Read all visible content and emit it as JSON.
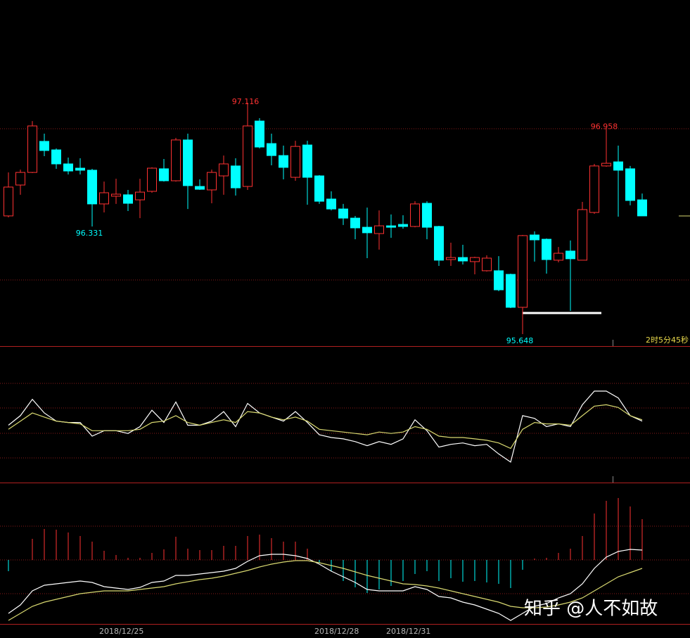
{
  "chart_data": [
    {
      "type": "candlestick",
      "categories": [
        null,
        null,
        null,
        null,
        null,
        null,
        null,
        null,
        "2018/12/25",
        null,
        null,
        null,
        null,
        null,
        null,
        null,
        null,
        null,
        null,
        null,
        null,
        null,
        null,
        null,
        null,
        null,
        "2018/12/28",
        null,
        null,
        null,
        null,
        null,
        "2018/12/31",
        null,
        null,
        null,
        null,
        null,
        null,
        null,
        null,
        null,
        null,
        null,
        null,
        null,
        null,
        null,
        null,
        null,
        null,
        null,
        null,
        null
      ],
      "open": [
        96.398,
        96.594,
        96.674,
        96.871,
        96.817,
        96.728,
        96.701,
        96.688,
        96.474,
        96.523,
        96.532,
        96.5,
        96.554,
        96.697,
        96.621,
        96.88,
        96.585,
        96.563,
        96.652,
        96.715,
        96.585,
        97.0,
        96.857,
        96.781,
        96.643,
        96.848,
        96.652,
        96.505,
        96.442,
        96.384,
        96.326,
        96.286,
        96.335,
        96.344,
        96.331,
        96.478,
        96.331,
        96.121,
        96.134,
        96.108,
        96.05,
        96.05,
        96.027,
        95.818,
        96.277,
        96.25,
        96.117,
        96.175,
        96.117,
        96.42,
        96.715,
        96.741,
        96.697,
        96.5
      ],
      "high": [
        96.674,
        96.692,
        97.0,
        96.92,
        96.826,
        96.768,
        96.764,
        96.697,
        96.616,
        96.634,
        96.563,
        96.634,
        96.706,
        96.759,
        96.893,
        96.92,
        96.63,
        96.692,
        96.781,
        96.764,
        97.116,
        97.018,
        96.92,
        96.844,
        96.875,
        96.875,
        96.657,
        96.554,
        96.474,
        96.398,
        96.451,
        96.433,
        96.407,
        96.402,
        96.491,
        96.491,
        96.335,
        96.228,
        96.215,
        96.139,
        96.148,
        96.143,
        96.032,
        96.277,
        96.3,
        96.255,
        96.201,
        96.242,
        96.487,
        96.728,
        96.958,
        96.844,
        96.715,
        96.54
      ],
      "low": [
        96.389,
        96.532,
        96.67,
        96.777,
        96.697,
        96.661,
        96.661,
        96.331,
        96.42,
        96.474,
        96.429,
        96.384,
        96.545,
        96.616,
        96.616,
        96.442,
        96.563,
        96.478,
        96.532,
        96.527,
        96.563,
        96.826,
        96.719,
        96.63,
        96.621,
        96.469,
        96.474,
        96.433,
        96.34,
        96.25,
        96.13,
        96.184,
        96.259,
        96.317,
        96.326,
        96.25,
        96.081,
        96.081,
        96.09,
        96.027,
        96.045,
        95.92,
        95.813,
        95.648,
        96.108,
        96.032,
        96.103,
        95.795,
        96.117,
        96.411,
        96.71,
        96.393,
        96.465,
        96.398
      ],
      "close": [
        96.581,
        96.674,
        96.969,
        96.813,
        96.728,
        96.683,
        96.688,
        96.474,
        96.545,
        96.536,
        96.478,
        96.549,
        96.701,
        96.621,
        96.88,
        96.59,
        96.567,
        96.674,
        96.728,
        96.576,
        96.969,
        96.835,
        96.781,
        96.706,
        96.839,
        96.643,
        96.491,
        96.442,
        96.384,
        96.322,
        96.291,
        96.335,
        96.326,
        96.331,
        96.474,
        96.326,
        96.117,
        96.134,
        96.112,
        96.134,
        96.13,
        95.929,
        95.818,
        96.273,
        96.246,
        96.121,
        96.161,
        96.126,
        96.438,
        96.715,
        96.732,
        96.688,
        96.496,
        96.398
      ],
      "up_color": "#ff3232",
      "down_color": "#00ffff",
      "ylim": [
        95.572,
        97.768
      ]
    },
    {
      "type": "line",
      "series": [
        {
          "color": "#ffffff",
          "values": [
            42,
            49,
            61,
            51,
            45,
            44,
            44,
            34,
            38,
            38,
            36,
            41,
            53,
            44,
            59,
            42,
            42,
            45,
            52,
            41,
            58,
            51,
            48,
            45,
            52,
            44,
            35,
            33,
            32,
            30,
            27,
            30,
            28,
            32,
            46,
            38,
            26,
            28,
            29,
            27,
            28,
            21,
            15,
            49,
            47,
            41,
            43,
            41,
            57,
            67,
            67,
            62,
            49,
            45
          ]
        },
        {
          "color": "#d8d870",
          "values": [
            39,
            45,
            51,
            48,
            45,
            44,
            43,
            38,
            38,
            38,
            38,
            39,
            44,
            45,
            49,
            44,
            42,
            44,
            46,
            44,
            52,
            51,
            48,
            46,
            48,
            45,
            39,
            38,
            37,
            36,
            35,
            37,
            36,
            37,
            41,
            39,
            34,
            33,
            33,
            32,
            31,
            29,
            25,
            39,
            44,
            43,
            43,
            42,
            49,
            56,
            57,
            55,
            49,
            46
          ]
        }
      ],
      "ylim": [
        0,
        100
      ]
    },
    {
      "type": "macd",
      "values": [
        -0.16,
        0,
        0.3,
        0.44,
        0.43,
        0.39,
        0.34,
        0.26,
        0.13,
        0.07,
        0.03,
        0.03,
        0.1,
        0.15,
        0.33,
        0.16,
        0.14,
        0.14,
        0.2,
        0.2,
        0.34,
        0.36,
        0.31,
        0.26,
        0.26,
        0.16,
        -0.04,
        -0.16,
        -0.3,
        -0.39,
        -0.47,
        -0.42,
        -0.37,
        -0.3,
        -0.2,
        -0.16,
        -0.3,
        -0.26,
        -0.31,
        -0.3,
        -0.32,
        -0.34,
        -0.4,
        -0.14,
        0.02,
        0.03,
        0.1,
        0.16,
        0.34,
        0.66,
        0.84,
        0.88,
        0.76,
        0.58
      ],
      "up_color": "#ff3232",
      "down_color": "#00ffff",
      "series": [
        {
          "color": "#ffffff",
          "values": [
            -0.76,
            -0.64,
            -0.44,
            -0.36,
            -0.34,
            -0.32,
            -0.3,
            -0.32,
            -0.38,
            -0.4,
            -0.42,
            -0.39,
            -0.32,
            -0.3,
            -0.22,
            -0.22,
            -0.2,
            -0.18,
            -0.16,
            -0.12,
            -0.02,
            0.06,
            0.08,
            0.08,
            0.06,
            0.02,
            -0.06,
            -0.16,
            -0.24,
            -0.32,
            -0.42,
            -0.44,
            -0.44,
            -0.44,
            -0.38,
            -0.42,
            -0.52,
            -0.54,
            -0.6,
            -0.64,
            -0.7,
            -0.76,
            -0.86,
            -0.76,
            -0.66,
            -0.62,
            -0.54,
            -0.48,
            -0.34,
            -0.12,
            0.04,
            0.12,
            0.15,
            0.14
          ]
        },
        {
          "color": "#d8d870",
          "values": [
            -0.86,
            -0.76,
            -0.66,
            -0.6,
            -0.56,
            -0.52,
            -0.48,
            -0.46,
            -0.44,
            -0.44,
            -0.44,
            -0.42,
            -0.4,
            -0.38,
            -0.34,
            -0.31,
            -0.28,
            -0.26,
            -0.23,
            -0.19,
            -0.15,
            -0.1,
            -0.06,
            -0.03,
            -0.01,
            -0.01,
            -0.04,
            -0.08,
            -0.12,
            -0.17,
            -0.22,
            -0.26,
            -0.3,
            -0.34,
            -0.35,
            -0.37,
            -0.4,
            -0.44,
            -0.48,
            -0.52,
            -0.56,
            -0.6,
            -0.66,
            -0.68,
            -0.68,
            -0.67,
            -0.64,
            -0.6,
            -0.54,
            -0.44,
            -0.34,
            -0.24,
            -0.18,
            -0.12
          ]
        }
      ],
      "ylim": [
        -0.91,
        1.1
      ]
    }
  ],
  "timer": "2时5分45秒",
  "watermark": "知乎 @人不如故"
}
